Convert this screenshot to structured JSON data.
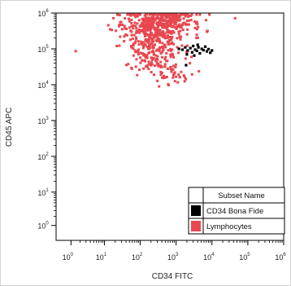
{
  "chart_data": {
    "type": "scatter",
    "xlabel": "CD34 FITC",
    "ylabel": "CD45 APC",
    "x_scale": "biexponential",
    "y_scale": "biexponential",
    "xlim": [
      -20,
      1000000
    ],
    "ylim": [
      -20,
      1000000
    ],
    "x_ticks": [
      {
        "base": "10",
        "exp": "0",
        "value": 1
      },
      {
        "base": "10",
        "exp": "1",
        "value": 10
      },
      {
        "base": "10",
        "exp": "2",
        "value": 100
      },
      {
        "base": "10",
        "exp": "3",
        "value": 1000
      },
      {
        "base": "10",
        "exp": "4",
        "value": 10000
      },
      {
        "base": "10",
        "exp": "5",
        "value": 100000
      },
      {
        "base": "10",
        "exp": "6",
        "value": 1000000
      }
    ],
    "y_ticks": [
      {
        "base": "10",
        "exp": "0",
        "value": 1
      },
      {
        "base": "10",
        "exp": "1",
        "value": 10
      },
      {
        "base": "10",
        "exp": "2",
        "value": 100
      },
      {
        "base": "10",
        "exp": "3",
        "value": 1000
      },
      {
        "base": "10",
        "exp": "4",
        "value": 10000
      },
      {
        "base": "10",
        "exp": "5",
        "value": 100000
      },
      {
        "base": "10",
        "exp": "6",
        "value": 1000000
      }
    ],
    "grid": false,
    "legend": {
      "title": "Subset Name",
      "placement": "bottom-right"
    },
    "series": [
      {
        "name": "CD34 Bona Fide",
        "color": "#000000",
        "points": [
          [
            1500,
            95000
          ],
          [
            1800,
            110000
          ],
          [
            2100,
            90000
          ],
          [
            2500,
            105000
          ],
          [
            2800,
            80000
          ],
          [
            3000,
            120000
          ],
          [
            3400,
            95000
          ],
          [
            3800,
            88000
          ],
          [
            4200,
            110000
          ],
          [
            4600,
            75000
          ],
          [
            5200,
            100000
          ],
          [
            5800,
            92000
          ],
          [
            6500,
            115000
          ],
          [
            7200,
            85000
          ],
          [
            8000,
            98000
          ],
          [
            9000,
            78000
          ],
          [
            10000,
            90000
          ],
          [
            2000,
            70000
          ],
          [
            3200,
            65000
          ],
          [
            1900,
            35000
          ],
          [
            1200,
            100000
          ],
          [
            4000,
            130000
          ]
        ]
      },
      {
        "name": "Lymphocytes",
        "color": "#e8474f",
        "density": [
          {
            "x": 500,
            "y": 600000,
            "n": 240,
            "sx": 0.5,
            "sy": 0.2
          },
          {
            "x": 200,
            "y": 350000,
            "n": 220,
            "sx": 0.5,
            "sy": 0.25
          },
          {
            "x": 250,
            "y": 120000,
            "n": 120,
            "sx": 0.4,
            "sy": 0.22
          },
          {
            "x": 300,
            "y": 40000,
            "n": 70,
            "sx": 0.35,
            "sy": 0.18
          },
          {
            "x": 700,
            "y": 20000,
            "n": 30,
            "sx": 0.3,
            "sy": 0.15
          }
        ]
      }
    ]
  }
}
